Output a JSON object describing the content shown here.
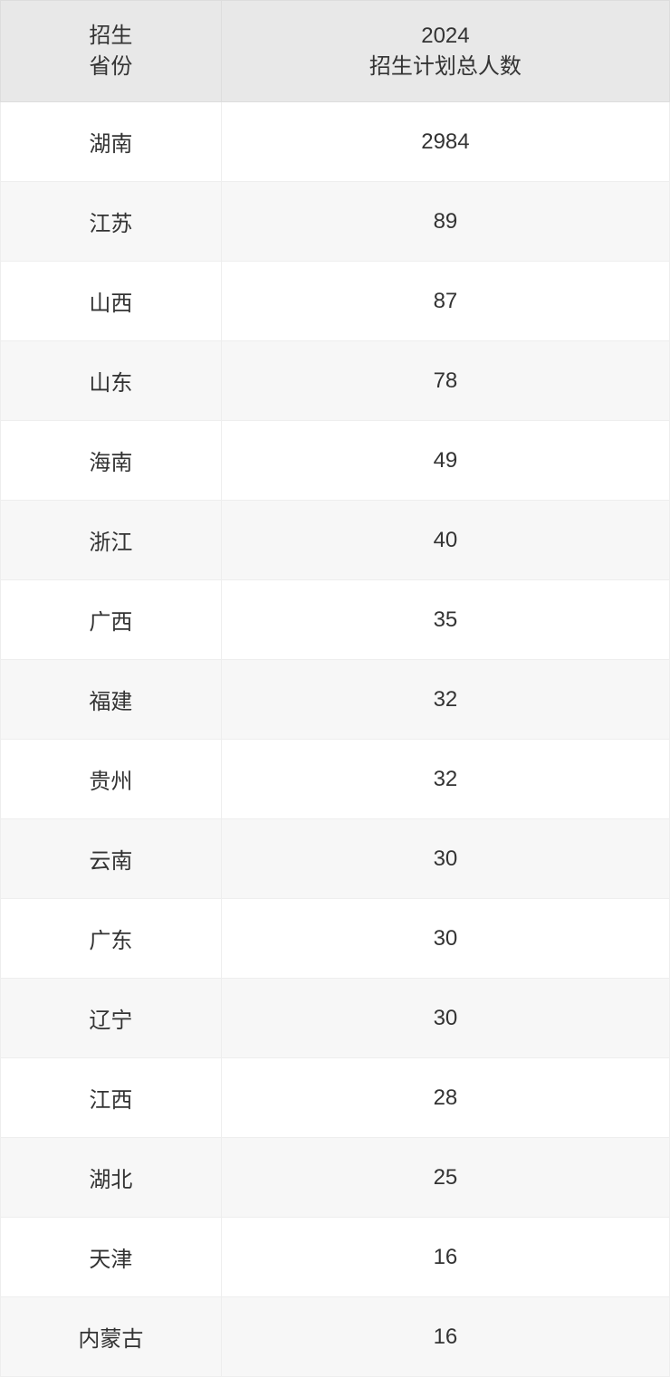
{
  "table": {
    "headers": {
      "province_line1": "招生",
      "province_line2": "省份",
      "count_line1": "2024",
      "count_line2": "招生计划总人数"
    },
    "rows": [
      {
        "province": "湖南",
        "count": "2984"
      },
      {
        "province": "江苏",
        "count": "89"
      },
      {
        "province": "山西",
        "count": "87"
      },
      {
        "province": "山东",
        "count": "78"
      },
      {
        "province": "海南",
        "count": "49"
      },
      {
        "province": "浙江",
        "count": "40"
      },
      {
        "province": "广西",
        "count": "35"
      },
      {
        "province": "福建",
        "count": "32"
      },
      {
        "province": "贵州",
        "count": "32"
      },
      {
        "province": "云南",
        "count": "30"
      },
      {
        "province": "广东",
        "count": "30"
      },
      {
        "province": "辽宁",
        "count": "30"
      },
      {
        "province": "江西",
        "count": "28"
      },
      {
        "province": "湖北",
        "count": "25"
      },
      {
        "province": "天津",
        "count": "16"
      },
      {
        "province": "内蒙古",
        "count": "16"
      }
    ],
    "styling": {
      "header_bg": "#e8e8e8",
      "row_odd_bg": "#ffffff",
      "row_even_bg": "#f7f7f7",
      "text_color": "#333333",
      "border_color": "#eeeeee",
      "header_border_color": "#dddddd",
      "font_size": 24,
      "col_widths": [
        "33%",
        "67%"
      ]
    }
  }
}
